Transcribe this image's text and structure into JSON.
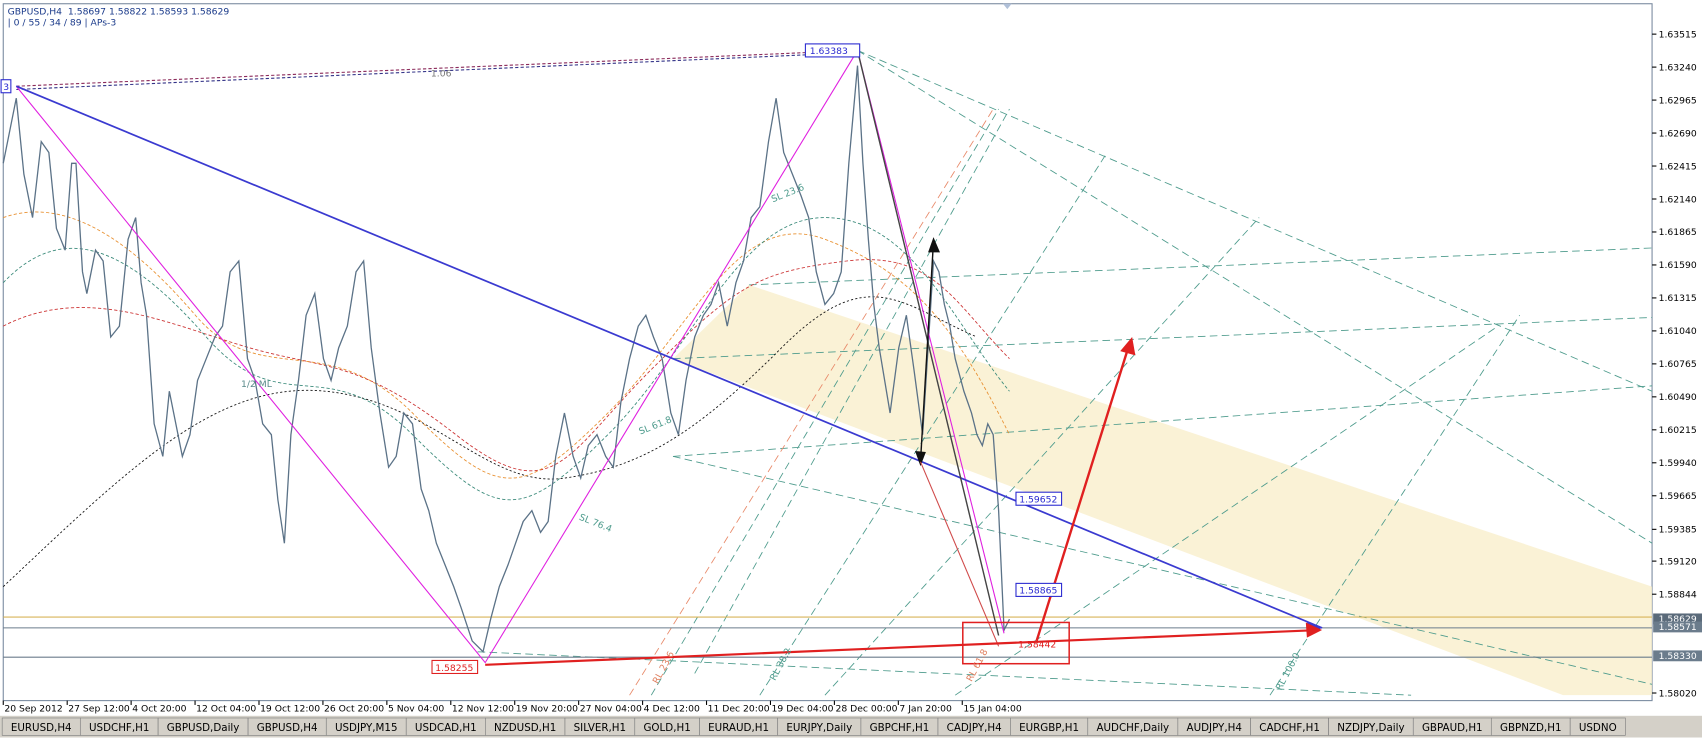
{
  "header": {
    "symbol_line": "GBPUSD,H4  1.58697 1.58822 1.58593 1.58629",
    "indicator_line": "| 0 / 55 / 34 / 89 | APs-3"
  },
  "price_axis": {
    "labels": [
      "1.63515",
      "1.63240",
      "1.62965",
      "1.62690",
      "1.62415",
      "1.62140",
      "1.61865",
      "1.61590",
      "1.61315",
      "1.61040",
      "1.60765",
      "1.60490",
      "1.60215",
      "1.59940",
      "1.59665",
      "1.59385",
      "1.59120",
      "1.58844",
      "1.58020"
    ],
    "current_price": "1.58629",
    "line_labels": [
      "1.58571",
      "1.58330"
    ]
  },
  "annotations": {
    "high": "1.63383",
    "low": "1.58255",
    "median_cross": "1.59652",
    "level": "1.58865",
    "target": "1.58442",
    "pivot_label": "3",
    "ratio": "1.06",
    "median_line": "1/2 ML",
    "fib_labels": [
      "SL 23.6",
      "SL 61.8",
      "SL 76.4",
      "RL 23.6",
      "RL 38.2",
      "RL 61.8",
      "RL 100.0"
    ]
  },
  "time_axis": [
    "20 Sep 2012",
    "27 Sep 12:00",
    "4 Oct 20:00",
    "12 Oct 04:00",
    "19 Oct 12:00",
    "26 Oct 20:00",
    "5 Nov 04:00",
    "12 Nov 12:00",
    "19 Nov 20:00",
    "27 Nov 04:00",
    "4 Dec 12:00",
    "11 Dec 20:00",
    "19 Dec 04:00",
    "28 Dec 00:00",
    "7 Jan 20:00",
    "15 Jan 04:00"
  ],
  "tabs": [
    "EURUSD,H4",
    "USDCHF,H1",
    "GBPUSD,Daily",
    "GBPUSD,H4",
    "USDJPY,M15",
    "USDCAD,H1",
    "NZDUSD,H1",
    "SILVER,H1",
    "GOLD,H1",
    "EURAUD,H1",
    "EURJPY,Daily",
    "GBPCHF,H1",
    "CADJPY,H4",
    "EURGBP,H1",
    "AUDCHF,Daily",
    "AUDJPY,H4",
    "CADCHF,H1",
    "NZDJPY,Daily",
    "GBPAUD,H1",
    "GBPNZD,H1",
    "USDNO"
  ]
}
